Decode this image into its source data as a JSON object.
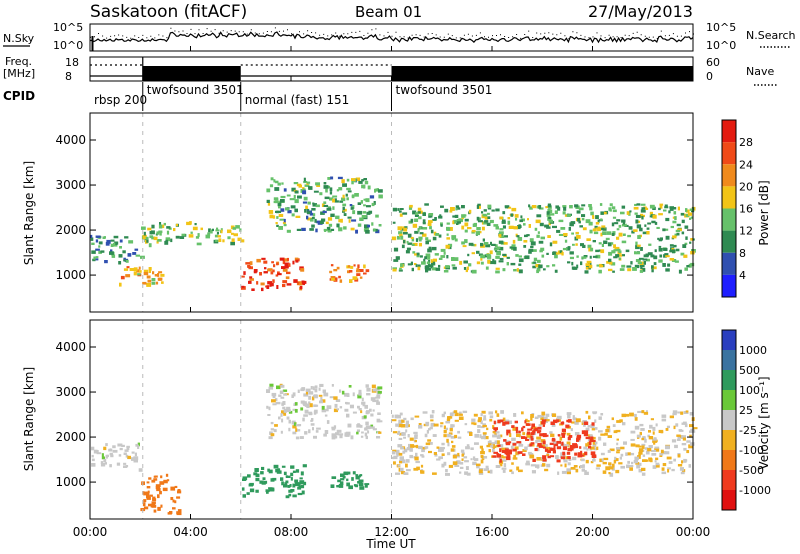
{
  "header": {
    "station": "Saskatoon (fitACF)",
    "beam": "Beam 01",
    "date": "27/May/2013"
  },
  "noise_panel": {
    "left_label": "N.Sky",
    "right_label": "N.Search",
    "left_ticks": [
      "10^5",
      "10^0"
    ],
    "right_ticks": [
      "10^5",
      "10^0"
    ]
  },
  "freq_panel": {
    "left_label_1": "Freq.",
    "left_label_2": "[MHz]",
    "right_label": "Nave",
    "left_ticks": [
      "18",
      "8"
    ],
    "right_ticks": [
      "60",
      "0"
    ]
  },
  "cpid": {
    "label": "CPID",
    "segments": [
      {
        "name": "rbsp 200",
        "start_h": 0,
        "end_h": 2.1
      },
      {
        "name": "twofsound 3501",
        "start_h": 2.1,
        "end_h": 6.0
      },
      {
        "name": "normal (fast) 151",
        "start_h": 6.0,
        "end_h": 12.0
      },
      {
        "name": "twofsound 3501",
        "start_h": 12.0,
        "end_h": 24.0
      }
    ]
  },
  "x_axis": {
    "title": "Time UT",
    "ticks": [
      "00:00",
      "04:00",
      "08:00",
      "12:00",
      "16:00",
      "20:00",
      "00:00"
    ]
  },
  "y_axis": {
    "title": "Slant Range [km]",
    "ticks": [
      "1000",
      "2000",
      "3000",
      "4000"
    ]
  },
  "power_colorbar": {
    "title": "Power [dB]",
    "ticks": [
      "4",
      "8",
      "12",
      "16",
      "20",
      "24",
      "28"
    ],
    "colors": [
      "#1f1fff",
      "#3050b0",
      "#2f8a52",
      "#66c16a",
      "#f2c417",
      "#f08a1c",
      "#f04a18",
      "#e31b10"
    ]
  },
  "velocity_colorbar": {
    "title": "Velocity [m s⁻¹]",
    "ticks": [
      "1000",
      "500",
      "100",
      "25",
      "-25",
      "-100",
      "-500",
      "-1000"
    ],
    "colors": [
      "#2a3fbf",
      "#3a73a0",
      "#2f9a5c",
      "#6ac838",
      "#c8c8c8",
      "#f0b020",
      "#f07818",
      "#ef3a1e",
      "#e01010"
    ]
  },
  "chart_data": [
    {
      "type": "heatmap",
      "title": "Power [dB]",
      "xlabel": "Time UT",
      "ylabel": "Slant Range [km]",
      "xlim": [
        0,
        24
      ],
      "ylim": [
        180,
        4600
      ],
      "regions": [
        {
          "t0": 0.0,
          "t1": 2.0,
          "r0": 1300,
          "r1": 1900,
          "power_db": 10
        },
        {
          "t0": 1.0,
          "t1": 3.0,
          "r0": 800,
          "r1": 1200,
          "power_db": 20
        },
        {
          "t0": 2.0,
          "t1": 6.0,
          "r0": 1700,
          "r1": 2200,
          "power_db": 14
        },
        {
          "t0": 6.0,
          "t1": 8.5,
          "r0": 700,
          "r1": 1400,
          "power_db": 27
        },
        {
          "t0": 7.0,
          "t1": 11.5,
          "r0": 2000,
          "r1": 3200,
          "power_db": 12
        },
        {
          "t0": 9.5,
          "t1": 11.0,
          "r0": 900,
          "r1": 1250,
          "power_db": 22
        },
        {
          "t0": 12.0,
          "t1": 24.0,
          "r0": 1100,
          "r1": 2600,
          "power_db": 13
        }
      ]
    },
    {
      "type": "heatmap",
      "title": "Velocity [m s⁻¹]",
      "xlabel": "Time UT",
      "ylabel": "Slant Range [km]",
      "xlim": [
        0,
        24
      ],
      "ylim": [
        180,
        4600
      ],
      "regions": [
        {
          "t0": 0.0,
          "t1": 2.0,
          "r0": 1300,
          "r1": 1900,
          "velocity": 0
        },
        {
          "t0": 2.0,
          "t1": 3.5,
          "r0": 300,
          "r1": 1200,
          "velocity": -150
        },
        {
          "t0": 6.0,
          "t1": 8.5,
          "r0": 700,
          "r1": 1400,
          "velocity": 200
        },
        {
          "t0": 9.5,
          "t1": 11.0,
          "r0": 900,
          "r1": 1250,
          "velocity": 150
        },
        {
          "t0": 7.0,
          "t1": 11.5,
          "r0": 2000,
          "r1": 3200,
          "velocity": 0
        },
        {
          "t0": 12.0,
          "t1": 24.0,
          "r0": 1200,
          "r1": 2600,
          "velocity": -20
        },
        {
          "t0": 16.0,
          "t1": 20.0,
          "r0": 1500,
          "r1": 2400,
          "velocity": -600
        }
      ]
    }
  ]
}
